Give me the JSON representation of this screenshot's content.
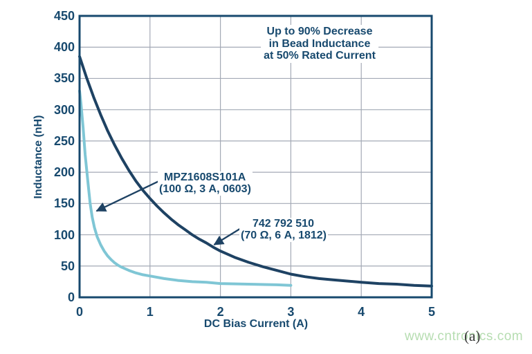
{
  "watermark": "www.cntronics.com",
  "figure_label": "(a)",
  "chart_data": {
    "type": "line",
    "xlabel": "DC Bias Current (A)",
    "ylabel": "Inductance (nH)",
    "xlim": [
      0,
      5
    ],
    "ylim": [
      0,
      450
    ],
    "xticks": [
      0,
      1,
      2,
      3,
      4,
      5
    ],
    "yticks": [
      0,
      50,
      100,
      150,
      200,
      250,
      300,
      350,
      400,
      450
    ],
    "grid": true,
    "legend_position": "none",
    "annotation": {
      "lines": [
        "Up to 90% Decrease",
        "in Bead Inductance",
        "at 50% Rated Current"
      ]
    },
    "colors": {
      "frame": "#17496e",
      "grid": "#a3a9b5",
      "text": "#17496e",
      "arrow": "#1e4263"
    },
    "series": [
      {
        "name": "742 792 510 (70 Ω, 6 A, 1812)",
        "label_lines": [
          "742 792 510",
          "(70 Ω, 6 A, 1812)"
        ],
        "color": "#1e4263",
        "points": [
          [
            0,
            385
          ],
          [
            0.1,
            351
          ],
          [
            0.2,
            320
          ],
          [
            0.3,
            292
          ],
          [
            0.4,
            266
          ],
          [
            0.5,
            243
          ],
          [
            0.6,
            222
          ],
          [
            0.7,
            203
          ],
          [
            0.8,
            186
          ],
          [
            0.9,
            171
          ],
          [
            1.0,
            158
          ],
          [
            1.1,
            146
          ],
          [
            1.2,
            135
          ],
          [
            1.3,
            125
          ],
          [
            1.4,
            116
          ],
          [
            1.5,
            108
          ],
          [
            1.6,
            100
          ],
          [
            1.7,
            93
          ],
          [
            1.8,
            87
          ],
          [
            1.9,
            80
          ],
          [
            2.0,
            74
          ],
          [
            2.2,
            64
          ],
          [
            2.4,
            56
          ],
          [
            2.6,
            49
          ],
          [
            2.8,
            43
          ],
          [
            3.0,
            37
          ],
          [
            3.2,
            33
          ],
          [
            3.4,
            30
          ],
          [
            3.6,
            28
          ],
          [
            3.8,
            26
          ],
          [
            4.0,
            24
          ],
          [
            4.25,
            22
          ],
          [
            4.5,
            21
          ],
          [
            4.75,
            19
          ],
          [
            5.0,
            18
          ]
        ]
      },
      {
        "name": "MPZ1608S101A (100 Ω, 3 A, 0603)",
        "label_lines": [
          "MPZ1608S101A",
          "(100 Ω, 3 A, 0603)"
        ],
        "color": "#7fc6d5",
        "points": [
          [
            0,
            330
          ],
          [
            0.02,
            310
          ],
          [
            0.05,
            272
          ],
          [
            0.08,
            228
          ],
          [
            0.1,
            205
          ],
          [
            0.12,
            183
          ],
          [
            0.15,
            150
          ],
          [
            0.18,
            128
          ],
          [
            0.21,
            112
          ],
          [
            0.25,
            97
          ],
          [
            0.3,
            84
          ],
          [
            0.35,
            74
          ],
          [
            0.4,
            66
          ],
          [
            0.45,
            60
          ],
          [
            0.5,
            55
          ],
          [
            0.55,
            51
          ],
          [
            0.6,
            48
          ],
          [
            0.7,
            43
          ],
          [
            0.8,
            39
          ],
          [
            0.9,
            36
          ],
          [
            1.0,
            34
          ],
          [
            1.2,
            30
          ],
          [
            1.4,
            27
          ],
          [
            1.6,
            25
          ],
          [
            1.8,
            24
          ],
          [
            2.0,
            22
          ],
          [
            2.4,
            21
          ],
          [
            2.8,
            20
          ],
          [
            3.0,
            19
          ]
        ]
      }
    ],
    "arrows": [
      {
        "target_series": "MPZ1608S101A",
        "from": [
          1.13,
          186
        ],
        "to": [
          0.24,
          138
        ]
      },
      {
        "target_series": "742 792 510",
        "from": [
          2.37,
          116
        ],
        "to": [
          1.91,
          84
        ]
      }
    ]
  }
}
